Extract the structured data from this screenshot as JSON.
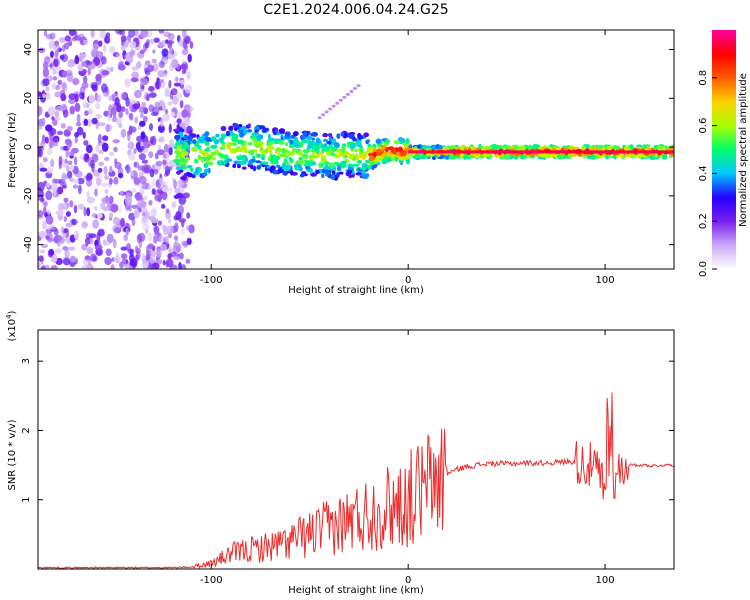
{
  "title": "C2E1.2024.006.04.24.G25",
  "chart_data": [
    {
      "type": "heatmap",
      "xlabel": "Height of straight line (km)",
      "ylabel": "Frequency (Hz)",
      "xlim": [
        -188,
        135
      ],
      "ylim": [
        -50,
        48
      ],
      "x_ticks": [
        -100,
        0,
        100
      ],
      "y_ticks": [
        40,
        20,
        0,
        -20,
        -40
      ],
      "ridge": [
        {
          "x": -115,
          "y": -4
        },
        {
          "x": -100,
          "y": -3
        },
        {
          "x": -90,
          "y": 0
        },
        {
          "x": -80,
          "y": 0
        },
        {
          "x": -70,
          "y": -1
        },
        {
          "x": -60,
          "y": -3
        },
        {
          "x": -50,
          "y": -3
        },
        {
          "x": -40,
          "y": -4
        },
        {
          "x": -30,
          "y": -3
        },
        {
          "x": -20,
          "y": -4
        },
        {
          "x": -10,
          "y": -1
        },
        {
          "x": 0,
          "y": -2
        },
        {
          "x": 20,
          "y": -2
        },
        {
          "x": 40,
          "y": -2
        },
        {
          "x": 60,
          "y": -2
        },
        {
          "x": 80,
          "y": -2
        },
        {
          "x": 100,
          "y": -2
        },
        {
          "x": 120,
          "y": -2
        },
        {
          "x": 135,
          "y": -2
        }
      ],
      "colorbar": {
        "label": "Normalized spectral amplitude",
        "ticks": [
          0.0,
          0.2,
          0.4,
          0.6,
          0.8
        ],
        "range": [
          0,
          1
        ],
        "colors": [
          "#ffffff",
          "#c9a8f5",
          "#7a1ef0",
          "#2200ff",
          "#00c8ff",
          "#00ff6a",
          "#aaff00",
          "#ffd000",
          "#ff5a00",
          "#ff0000",
          "#ff00a0"
        ]
      }
    },
    {
      "type": "line",
      "xlabel": "Height of straight line (km)",
      "ylabel": "SNR (10 * v/v)",
      "multiplier": "(x10",
      "multiplier_exp": "4",
      "multiplier_close": ")",
      "xlim": [
        -188,
        135
      ],
      "ylim": [
        0,
        3.45
      ],
      "x_ticks": [
        -100,
        0,
        100
      ],
      "y_ticks": [
        1,
        2,
        3
      ],
      "color": "#ee2a2a",
      "x": [
        -188,
        -120,
        -110,
        -100,
        -95,
        -90,
        -85,
        -80,
        -75,
        -70,
        -65,
        -60,
        -55,
        -50,
        -45,
        -40,
        -35,
        -30,
        -25,
        -20,
        -15,
        -10,
        -5,
        0,
        5,
        10,
        15,
        20,
        25,
        30,
        40,
        50,
        60,
        70,
        80,
        85,
        90,
        95,
        98,
        100,
        102,
        104,
        106,
        108,
        110,
        115,
        120,
        125,
        130,
        135
      ],
      "y": [
        0.02,
        0.02,
        0.03,
        0.08,
        0.15,
        0.22,
        0.25,
        0.28,
        0.3,
        0.33,
        0.35,
        0.4,
        0.45,
        0.5,
        0.55,
        0.6,
        0.65,
        0.7,
        0.75,
        0.8,
        0.85,
        0.9,
        0.95,
        1.0,
        1.1,
        1.2,
        1.3,
        1.38,
        1.44,
        1.48,
        1.52,
        1.52,
        1.53,
        1.53,
        1.55,
        1.55,
        1.52,
        1.45,
        1.3,
        1.0,
        1.6,
        1.2,
        1.5,
        1.35,
        1.5,
        1.5,
        1.5,
        1.49,
        1.5,
        1.5
      ]
    }
  ]
}
